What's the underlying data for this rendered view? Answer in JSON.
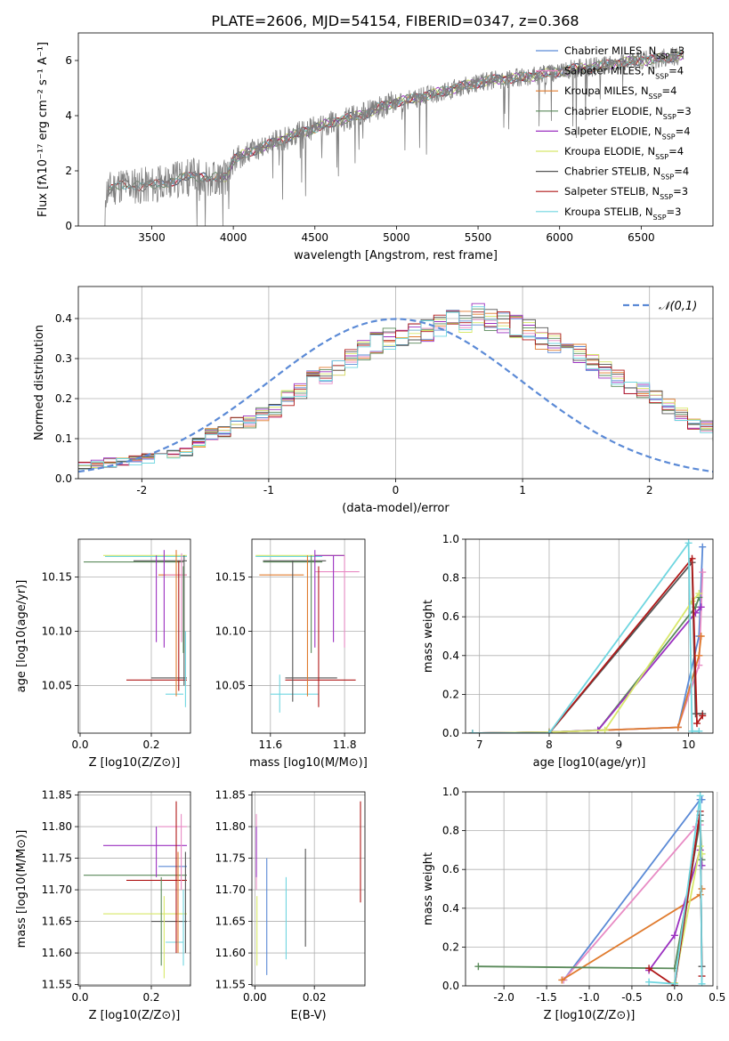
{
  "figure_title": "PLATE=2606, MJD=54154, FIBERID=0347, z=0.368",
  "colors": {
    "Chabrier MILES": "#5b8ad6",
    "Salpeter MILES": "#e88bc4",
    "Kroupa MILES": "#e07b2e",
    "Chabrier ELODIE": "#5a8a5a",
    "Salpeter ELODIE": "#9b30c0",
    "Kroupa ELODIE": "#d8e86a",
    "Chabrier STELIB": "#555555",
    "Salpeter STELIB": "#b01818",
    "Kroupa STELIB": "#6fd6e0",
    "data": "#7f7f7f",
    "normal": "#5b8ad6"
  },
  "chart_data": [
    {
      "id": "spectrum",
      "type": "line",
      "xlabel": "wavelength [Angstrom, rest frame]",
      "ylabel": "Flux [fλ10⁻¹⁷ erg cm⁻² s⁻¹ A⁻¹]",
      "xlim": [
        3050,
        6940
      ],
      "ylim": [
        0,
        7
      ],
      "xticks": [
        3500,
        4000,
        4500,
        5000,
        5500,
        6000,
        6500
      ],
      "yticks": [
        0,
        2,
        4,
        6
      ],
      "legend": "upper right",
      "legend_labels": [
        "Chabrier MILES, N_SSP=3",
        "Salpeter MILES, N_SSP=4",
        "Kroupa MILES, N_SSP=4",
        "Chabrier ELODIE, N_SSP=3",
        "Salpeter ELODIE, N_SSP=4",
        "Kroupa ELODIE, N_SSP=4",
        "Chabrier STELIB, N_SSP=4",
        "Salpeter STELIB, N_SSP=3",
        "Kroupa STELIB, N_SSP=3"
      ],
      "continuum_x": [
        3210,
        3300,
        3450,
        3540,
        3600,
        3700,
        3800,
        3900,
        3960,
        4000,
        4100,
        4200,
        4300,
        4400,
        4500,
        4600,
        4700,
        4800,
        4900,
        5000,
        5100,
        5200,
        5300,
        5400,
        5500,
        5600,
        5700,
        5800,
        5900,
        6000,
        6100,
        6200,
        6300,
        6400,
        6500,
        6600,
        6760
      ],
      "continuum_y": [
        1.2,
        1.5,
        1.45,
        1.5,
        1.6,
        1.75,
        1.8,
        1.75,
        1.8,
        2.4,
        2.7,
        2.9,
        3.15,
        3.35,
        3.55,
        3.75,
        3.9,
        4.05,
        4.3,
        4.5,
        4.6,
        4.75,
        4.9,
        5.05,
        5.2,
        5.3,
        5.35,
        5.4,
        5.5,
        5.6,
        5.7,
        5.75,
        5.85,
        5.95,
        6.0,
        6.05,
        6.2
      ]
    },
    {
      "id": "residuals",
      "type": "histogram",
      "xlabel": "(data-model)/error",
      "ylabel": "Normed distribution",
      "xlim": [
        -2.5,
        2.5
      ],
      "ylim": [
        0,
        0.48
      ],
      "xticks": [
        -2,
        -1,
        0,
        1,
        2
      ],
      "yticks": [
        0.0,
        0.1,
        0.2,
        0.3,
        0.4
      ],
      "grid": true,
      "legend": "upper right",
      "reference_label": "𝒩(0,1)",
      "bin_width": 0.1,
      "base_bins": [
        0.03,
        0.035,
        0.04,
        0.045,
        0.045,
        0.05,
        0.055,
        0.06,
        0.07,
        0.09,
        0.11,
        0.12,
        0.14,
        0.14,
        0.16,
        0.17,
        0.2,
        0.22,
        0.25,
        0.26,
        0.28,
        0.3,
        0.32,
        0.34,
        0.35,
        0.35,
        0.36,
        0.37,
        0.38,
        0.4,
        0.39,
        0.41,
        0.4,
        0.39,
        0.38,
        0.37,
        0.35,
        0.34,
        0.33,
        0.31,
        0.29,
        0.27,
        0.25,
        0.23,
        0.22,
        0.2,
        0.18,
        0.16,
        0.14,
        0.13,
        0.11,
        0.1,
        0.09,
        0.08,
        0.07,
        0.06,
        0.055,
        0.05,
        0.045,
        0.04
      ]
    },
    {
      "id": "age-vs-Z",
      "type": "errorbar",
      "xlabel": "Z [log10(Z/Z⊙)]",
      "ylabel": "age  [log10(age/yr)]",
      "xlim": [
        -0.005,
        0.31
      ],
      "ylim": [
        10.006,
        10.185
      ],
      "xticks": [
        0.0,
        0.2
      ],
      "yticks": [
        10.05,
        10.1,
        10.15
      ],
      "grid": true,
      "hbars": [
        {
          "s": "Kroupa ELODIE",
          "y": 10.17,
          "x0": 0.065,
          "x1": 0.3
        },
        {
          "s": "Kroupa STELIB",
          "y": 10.169,
          "x0": 0.07,
          "x1": 0.3
        },
        {
          "s": "Chabrier ELODIE",
          "y": 10.164,
          "x0": 0.01,
          "x1": 0.29
        },
        {
          "s": "Chabrier STELIB",
          "y": 10.165,
          "x0": 0.15,
          "x1": 0.3
        },
        {
          "s": "Kroupa MILES",
          "y": 10.152,
          "x0": 0.22,
          "x1": 0.3
        },
        {
          "s": "Salpeter MILES",
          "y": 10.152,
          "x0": 0.24,
          "x1": 0.3
        },
        {
          "s": "Chabrier STELIB",
          "y": 10.057,
          "x0": 0.2,
          "x1": 0.3
        },
        {
          "s": "Salpeter STELIB",
          "y": 10.055,
          "x0": 0.13,
          "x1": 0.3
        },
        {
          "s": "Kroupa STELIB",
          "y": 10.042,
          "x0": 0.24,
          "x1": 0.29
        }
      ],
      "vbars": [
        {
          "s": "Salpeter ELODIE",
          "x": 0.214,
          "y0": 10.09,
          "y1": 10.17
        },
        {
          "s": "Salpeter ELODIE",
          "x": 0.236,
          "y0": 10.085,
          "y1": 10.175
        },
        {
          "s": "Kroupa MILES",
          "x": 0.27,
          "y0": 10.04,
          "y1": 10.175
        },
        {
          "s": "Salpeter STELIB",
          "x": 0.277,
          "y0": 10.045,
          "y1": 10.165
        },
        {
          "s": "Salpeter MILES",
          "x": 0.285,
          "y0": 10.09,
          "y1": 10.172
        },
        {
          "s": "Chabrier STELIB",
          "x": 0.292,
          "y0": 10.05,
          "y1": 10.17
        },
        {
          "s": "Kroupa STELIB",
          "x": 0.296,
          "y0": 10.03,
          "y1": 10.1
        },
        {
          "s": "Chabrier ELODIE",
          "x": 0.29,
          "y0": 10.08,
          "y1": 10.16
        }
      ]
    },
    {
      "id": "age-vs-mass",
      "type": "errorbar",
      "xlabel": "mass [log10(M/M⊙)]",
      "ylabel": "",
      "xlim": [
        11.55,
        11.855
      ],
      "ylim": [
        10.006,
        10.185
      ],
      "xticks": [
        11.6,
        11.8
      ],
      "yticks": [
        10.05,
        10.1,
        10.15
      ],
      "grid": true,
      "hbars": [
        {
          "s": "Kroupa ELODIE",
          "y": 10.17,
          "x0": 11.56,
          "x1": 11.8
        },
        {
          "s": "Kroupa STELIB",
          "y": 10.169,
          "x0": 11.56,
          "x1": 11.74
        },
        {
          "s": "Salpeter ELODIE",
          "y": 10.17,
          "x0": 11.72,
          "x1": 11.8
        },
        {
          "s": "Chabrier STELIB",
          "y": 10.165,
          "x0": 11.58,
          "x1": 11.75
        },
        {
          "s": "Chabrier ELODIE",
          "y": 10.164,
          "x0": 11.58,
          "x1": 11.74
        },
        {
          "s": "Kroupa MILES",
          "y": 10.152,
          "x0": 11.57,
          "x1": 11.69
        },
        {
          "s": "Salpeter MILES",
          "y": 10.155,
          "x0": 11.72,
          "x1": 11.84
        },
        {
          "s": "Chabrier STELIB",
          "y": 10.057,
          "x0": 11.64,
          "x1": 11.78
        },
        {
          "s": "Salpeter STELIB",
          "y": 10.055,
          "x0": 11.64,
          "x1": 11.83
        },
        {
          "s": "Kroupa STELIB",
          "y": 10.042,
          "x0": 11.6,
          "x1": 11.73
        }
      ],
      "vbars": [
        {
          "s": "Kroupa STELIB",
          "x": 11.625,
          "y0": 10.025,
          "y1": 10.06
        },
        {
          "s": "Chabrier STELIB",
          "x": 11.66,
          "y0": 10.035,
          "y1": 10.165
        },
        {
          "s": "Salpeter ELODIE",
          "x": 11.72,
          "y0": 10.085,
          "y1": 10.175
        },
        {
          "s": "Kroupa MILES",
          "x": 11.7,
          "y0": 10.04,
          "y1": 10.17
        },
        {
          "s": "Salpeter ELODIE",
          "x": 11.77,
          "y0": 10.09,
          "y1": 10.17
        },
        {
          "s": "Salpeter MILES",
          "x": 11.8,
          "y0": 10.085,
          "y1": 10.17
        },
        {
          "s": "Salpeter STELIB",
          "x": 11.73,
          "y0": 10.03,
          "y1": 10.16
        },
        {
          "s": "Chabrier ELODIE",
          "x": 11.71,
          "y0": 10.08,
          "y1": 10.17
        }
      ]
    },
    {
      "id": "mass-weight-vs-age",
      "type": "line",
      "xlabel": "age  [log10(age/yr)]",
      "ylabel": "mass weight",
      "xlim": [
        6.8,
        10.35
      ],
      "ylim": [
        0,
        1.0
      ],
      "xticks": [
        7,
        8,
        9,
        10
      ],
      "yticks": [
        0.0,
        0.2,
        0.4,
        0.6,
        0.8,
        1.0
      ],
      "grid": true,
      "series": [
        {
          "s": "Chabrier MILES",
          "x": [
            6.9,
            8.0,
            9.85,
            10.15,
            10.2
          ],
          "y": [
            0.0,
            0.005,
            0.03,
            0.5,
            0.96
          ]
        },
        {
          "s": "Salpeter MILES",
          "x": [
            6.9,
            8.0,
            9.85,
            10.15,
            10.2
          ],
          "y": [
            0.0,
            0.005,
            0.03,
            0.35,
            0.83
          ]
        },
        {
          "s": "Kroupa MILES",
          "x": [
            6.9,
            8.0,
            9.85,
            10.15,
            10.18
          ],
          "y": [
            0.0,
            0.005,
            0.03,
            0.4,
            0.5
          ]
        },
        {
          "s": "Chabrier ELODIE",
          "x": [
            6.9,
            8.0,
            8.7,
            10.1,
            10.15
          ],
          "y": [
            0.0,
            0.005,
            0.015,
            0.65,
            0.7
          ]
        },
        {
          "s": "Salpeter ELODIE",
          "x": [
            6.9,
            8.0,
            8.7,
            10.1,
            10.18
          ],
          "y": [
            0.0,
            0.005,
            0.015,
            0.62,
            0.65
          ]
        },
        {
          "s": "Kroupa ELODIE",
          "x": [
            6.9,
            8.0,
            8.8,
            10.05,
            10.15
          ],
          "y": [
            0.0,
            0.005,
            0.015,
            0.68,
            0.72
          ]
        },
        {
          "s": "Chabrier STELIB",
          "x": [
            6.9,
            8.0,
            10.05,
            10.1,
            10.2
          ],
          "y": [
            0.0,
            0.0,
            0.88,
            0.1,
            0.1
          ]
        },
        {
          "s": "Salpeter STELIB",
          "x": [
            6.9,
            8.0,
            10.05,
            10.12,
            10.2
          ],
          "y": [
            0.0,
            0.0,
            0.9,
            0.05,
            0.09
          ]
        },
        {
          "s": "Kroupa STELIB",
          "x": [
            6.9,
            8.0,
            10.0,
            10.05,
            10.15
          ],
          "y": [
            0.0,
            0.0,
            0.98,
            0.01,
            0.01
          ]
        }
      ]
    },
    {
      "id": "mass-vs-Z",
      "type": "errorbar",
      "xlabel": "Z [log10(Z/Z⊙)]",
      "ylabel": "mass [log10(M/M⊙)]",
      "xlim": [
        -0.005,
        0.31
      ],
      "ylim": [
        11.548,
        11.855
      ],
      "xticks": [
        0.0,
        0.2
      ],
      "yticks": [
        11.55,
        11.6,
        11.65,
        11.7,
        11.75,
        11.8,
        11.85
      ],
      "grid": true,
      "hbars": [
        {
          "s": "Salpeter MILES",
          "y": 11.8,
          "x0": 0.22,
          "x1": 0.3
        },
        {
          "s": "Salpeter ELODIE",
          "y": 11.77,
          "x0": 0.065,
          "x1": 0.3
        },
        {
          "s": "Chabrier MILES",
          "y": 11.737,
          "x0": 0.22,
          "x1": 0.3
        },
        {
          "s": "Chabrier ELODIE",
          "y": 11.723,
          "x0": 0.01,
          "x1": 0.3
        },
        {
          "s": "Salpeter STELIB",
          "y": 11.715,
          "x0": 0.13,
          "x1": 0.3
        },
        {
          "s": "Kroupa ELODIE",
          "y": 11.662,
          "x0": 0.065,
          "x1": 0.3
        },
        {
          "s": "Chabrier STELIB",
          "y": 11.65,
          "x0": 0.2,
          "x1": 0.3
        },
        {
          "s": "Kroupa STELIB",
          "y": 11.617,
          "x0": 0.24,
          "x1": 0.29
        }
      ],
      "vbars": [
        {
          "s": "Salpeter ELODIE",
          "x": 0.214,
          "y0": 11.72,
          "y1": 11.8
        },
        {
          "s": "Chabrier ELODIE",
          "x": 0.228,
          "y0": 11.58,
          "y1": 11.72
        },
        {
          "s": "Kroupa ELODIE",
          "x": 0.236,
          "y0": 11.56,
          "y1": 11.69
        },
        {
          "s": "Salpeter STELIB",
          "x": 0.27,
          "y0": 11.6,
          "y1": 11.84
        },
        {
          "s": "Kroupa MILES",
          "x": 0.275,
          "y0": 11.6,
          "y1": 11.76
        },
        {
          "s": "Salpeter MILES",
          "x": 0.284,
          "y0": 11.7,
          "y1": 11.82
        },
        {
          "s": "Kroupa STELIB",
          "x": 0.29,
          "y0": 11.58,
          "y1": 11.7
        },
        {
          "s": "Chabrier STELIB",
          "x": 0.296,
          "y0": 11.6,
          "y1": 11.76
        }
      ]
    },
    {
      "id": "mass-vs-ebv",
      "type": "errorbar",
      "xlabel": "E(B-V)",
      "ylabel": "",
      "xlim": [
        -0.001,
        0.037
      ],
      "ylim": [
        11.548,
        11.855
      ],
      "xticks": [
        0.0,
        0.02
      ],
      "yticks": [
        11.55,
        11.6,
        11.65,
        11.7,
        11.75,
        11.8,
        11.85
      ],
      "grid": true,
      "hbars": [],
      "vbars": [
        {
          "s": "Salpeter MILES",
          "x": 0.0005,
          "y0": 11.7,
          "y1": 11.82
        },
        {
          "s": "Salpeter ELODIE",
          "x": 0.0005,
          "y0": 11.72,
          "y1": 11.8
        },
        {
          "s": "Kroupa ELODIE",
          "x": 0.0007,
          "y0": 11.58,
          "y1": 11.69
        },
        {
          "s": "Chabrier MILES",
          "x": 0.004,
          "y0": 11.565,
          "y1": 11.75
        },
        {
          "s": "Kroupa STELIB",
          "x": 0.0105,
          "y0": 11.59,
          "y1": 11.72
        },
        {
          "s": "Chabrier STELIB",
          "x": 0.017,
          "y0": 11.61,
          "y1": 11.765
        },
        {
          "s": "Salpeter STELIB",
          "x": 0.0355,
          "y0": 11.68,
          "y1": 11.84
        }
      ]
    },
    {
      "id": "mass-weight-vs-Z",
      "type": "line",
      "xlabel": "Z [log10(Z/Z⊙)]",
      "ylabel": "mass weight",
      "xlim": [
        -2.45,
        0.45
      ],
      "ylim": [
        0,
        1.0
      ],
      "xticks": [
        -2.0,
        -1.5,
        -1.0,
        -0.5,
        0.0,
        0.5
      ],
      "yticks": [
        0.0,
        0.2,
        0.4,
        0.6,
        0.8,
        1.0
      ],
      "grid": true,
      "series": [
        {
          "s": "Chabrier MILES",
          "x": [
            -1.3,
            0.3,
            0.32
          ],
          "y": [
            0.03,
            0.96,
            0.96
          ]
        },
        {
          "s": "Salpeter MILES",
          "x": [
            -1.3,
            0.25,
            0.3
          ],
          "y": [
            0.03,
            0.82,
            0.83
          ]
        },
        {
          "s": "Kroupa MILES",
          "x": [
            -1.32,
            0.3,
            0.32
          ],
          "y": [
            0.03,
            0.47,
            0.5
          ]
        },
        {
          "s": "Chabrier ELODIE",
          "x": [
            -2.3,
            0.0,
            0.3,
            0.32
          ],
          "y": [
            0.1,
            0.09,
            0.85,
            0.65
          ]
        },
        {
          "s": "Salpeter ELODIE",
          "x": [
            -0.3,
            0.0,
            0.3,
            0.32
          ],
          "y": [
            0.08,
            0.26,
            0.7,
            0.62
          ]
        },
        {
          "s": "Kroupa ELODIE",
          "x": [
            0.0,
            0.3,
            0.32
          ],
          "y": [
            0.015,
            0.72,
            0.68
          ]
        },
        {
          "s": "Chabrier STELIB",
          "x": [
            0.0,
            0.3,
            0.32
          ],
          "y": [
            0.0,
            0.88,
            0.1
          ]
        },
        {
          "s": "Salpeter STELIB",
          "x": [
            -0.3,
            0.0,
            0.3,
            0.32
          ],
          "y": [
            0.09,
            0.0,
            0.9,
            0.05
          ]
        },
        {
          "s": "Kroupa STELIB",
          "x": [
            -0.3,
            0.0,
            0.3,
            0.32
          ],
          "y": [
            0.02,
            0.01,
            0.98,
            0.01
          ]
        }
      ]
    }
  ]
}
